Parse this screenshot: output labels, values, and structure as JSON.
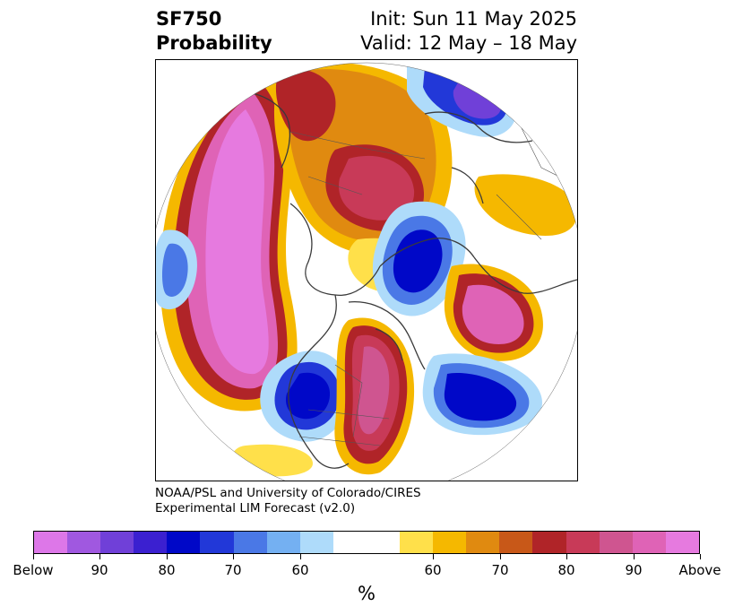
{
  "header": {
    "title_line1": "SF750",
    "title_line2": "Probability",
    "init": "Init: Sun 11 May 2025",
    "valid": "Valid: 12 May – 18 May"
  },
  "credit": {
    "line1": "NOAA/PSL and University of Colorado/CIRES",
    "line2": "Experimental LIM Forecast (v2.0)"
  },
  "colorbar": {
    "colors": [
      "#dd77e8",
      "#a058e0",
      "#7040d8",
      "#3b20d0",
      "#0008c8",
      "#2238d8",
      "#4a78e6",
      "#74b0f2",
      "#aedbfa",
      "#ffffff",
      "#ffffff",
      "#ffe04a",
      "#f5b800",
      "#e08a10",
      "#c85818",
      "#b02428",
      "#c83a58",
      "#cf5590",
      "#df63b6",
      "#e67adf"
    ],
    "ticks": [
      {
        "label": "Below",
        "index": 0
      },
      {
        "label": "90",
        "index": 2
      },
      {
        "label": "80",
        "index": 4
      },
      {
        "label": "70",
        "index": 6
      },
      {
        "label": "60",
        "index": 8
      },
      {
        "label": "60",
        "index": 12
      },
      {
        "label": "70",
        "index": 14
      },
      {
        "label": "80",
        "index": 16
      },
      {
        "label": "90",
        "index": 18
      },
      {
        "label": "Above",
        "index": 20
      }
    ],
    "unit": "%"
  },
  "map": {
    "anomalies": [
      {
        "name": "north-pacific-above",
        "sign": "above",
        "level": 9
      },
      {
        "name": "siberia-above",
        "sign": "above",
        "level": 8
      },
      {
        "name": "greenland-below",
        "sign": "below",
        "level": 8
      },
      {
        "name": "arctic-europe-above",
        "sign": "above",
        "level": 7
      },
      {
        "name": "north-atlantic-below",
        "sign": "below",
        "level": 8
      },
      {
        "name": "western-us-below",
        "sign": "below",
        "level": 8
      },
      {
        "name": "central-us-above",
        "sign": "above",
        "level": 8
      },
      {
        "name": "far-east-below",
        "sign": "below",
        "level": 8
      },
      {
        "name": "dateline-below",
        "sign": "below",
        "level": 5
      }
    ]
  }
}
